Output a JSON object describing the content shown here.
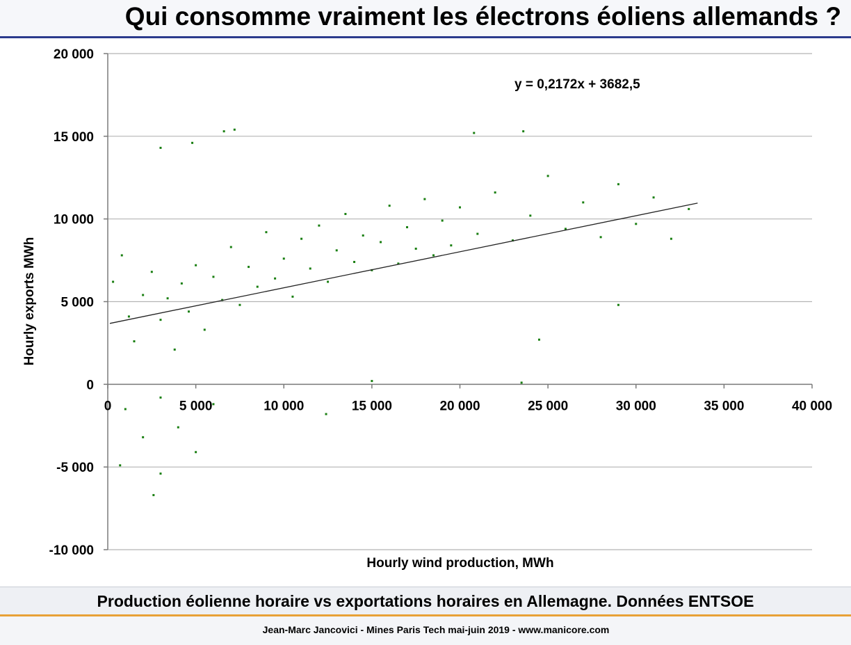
{
  "slide": {
    "title": "Qui consomme vraiment les électrons éoliens allemands ?",
    "caption": "Production éolienne horaire vs exportations horaires en Allemagne. Données ENTSOE",
    "footer": "Jean-Marc Jancovici - Mines Paris Tech mai-juin 2019 - www.manicore.com"
  },
  "chart_data": {
    "type": "scatter",
    "title": "",
    "xlabel": "Hourly wind production, MWh",
    "ylabel": "Hourly exports MWh",
    "xlim": [
      0,
      40000
    ],
    "ylim": [
      -10000,
      20000
    ],
    "x_ticks": [
      0,
      5000,
      10000,
      15000,
      20000,
      25000,
      30000,
      35000,
      40000
    ],
    "y_ticks": [
      -10000,
      -5000,
      0,
      5000,
      10000,
      15000,
      20000
    ],
    "x_tick_labels": [
      "0",
      "5 000",
      "10 000",
      "15 000",
      "20 000",
      "25 000",
      "30 000",
      "35 000",
      "40 000"
    ],
    "y_tick_labels": [
      "-10 000",
      "-5 000",
      "0",
      "5 000",
      "10 000",
      "15 000",
      "20 000"
    ],
    "grid": "horizontal",
    "legend": "none",
    "point_color": "#1a7f12",
    "trendline": {
      "equation": "y = 0,2172x + 3682,5",
      "slope": 0.2172,
      "intercept": 3682.5,
      "x_range": [
        0,
        33500
      ],
      "color": "#222222"
    },
    "points": [
      [
        300,
        6200
      ],
      [
        800,
        7800
      ],
      [
        1200,
        4100
      ],
      [
        1500,
        2600
      ],
      [
        2000,
        5400
      ],
      [
        2500,
        6800
      ],
      [
        3000,
        3900
      ],
      [
        3400,
        5200
      ],
      [
        3800,
        2100
      ],
      [
        4200,
        6100
      ],
      [
        4600,
        4400
      ],
      [
        5000,
        7200
      ],
      [
        5500,
        3300
      ],
      [
        6000,
        6500
      ],
      [
        6500,
        5100
      ],
      [
        7000,
        8300
      ],
      [
        7500,
        4800
      ],
      [
        8000,
        7100
      ],
      [
        8500,
        5900
      ],
      [
        9000,
        9200
      ],
      [
        9500,
        6400
      ],
      [
        10000,
        7600
      ],
      [
        10500,
        5300
      ],
      [
        11000,
        8800
      ],
      [
        11500,
        7000
      ],
      [
        12000,
        9600
      ],
      [
        12500,
        6200
      ],
      [
        13000,
        8100
      ],
      [
        13500,
        10300
      ],
      [
        14000,
        7400
      ],
      [
        14500,
        9000
      ],
      [
        15000,
        6900
      ],
      [
        15500,
        8600
      ],
      [
        16000,
        10800
      ],
      [
        16500,
        7300
      ],
      [
        17000,
        9500
      ],
      [
        17500,
        8200
      ],
      [
        18000,
        11200
      ],
      [
        18500,
        7800
      ],
      [
        19000,
        9900
      ],
      [
        19500,
        8400
      ],
      [
        20000,
        10700
      ],
      [
        21000,
        9100
      ],
      [
        22000,
        11600
      ],
      [
        23000,
        8700
      ],
      [
        24000,
        10200
      ],
      [
        25000,
        12600
      ],
      [
        26000,
        9400
      ],
      [
        27000,
        11000
      ],
      [
        28000,
        8900
      ],
      [
        29000,
        12100
      ],
      [
        30000,
        9700
      ],
      [
        31000,
        11300
      ],
      [
        32000,
        8800
      ],
      [
        33000,
        10600
      ],
      [
        1000,
        -1500
      ],
      [
        2000,
        -3200
      ],
      [
        3000,
        -800
      ],
      [
        4000,
        -2600
      ],
      [
        5000,
        -4100
      ],
      [
        6000,
        -1200
      ],
      [
        2600,
        -6700
      ],
      [
        3000,
        -5400
      ],
      [
        6600,
        15300
      ],
      [
        7200,
        15400
      ],
      [
        23600,
        15300
      ],
      [
        20800,
        15200
      ],
      [
        3000,
        14300
      ],
      [
        4800,
        14600
      ],
      [
        700,
        -4900
      ],
      [
        12400,
        -1800
      ],
      [
        15000,
        200
      ],
      [
        23500,
        100
      ],
      [
        24500,
        2700
      ],
      [
        29000,
        4800
      ]
    ]
  }
}
